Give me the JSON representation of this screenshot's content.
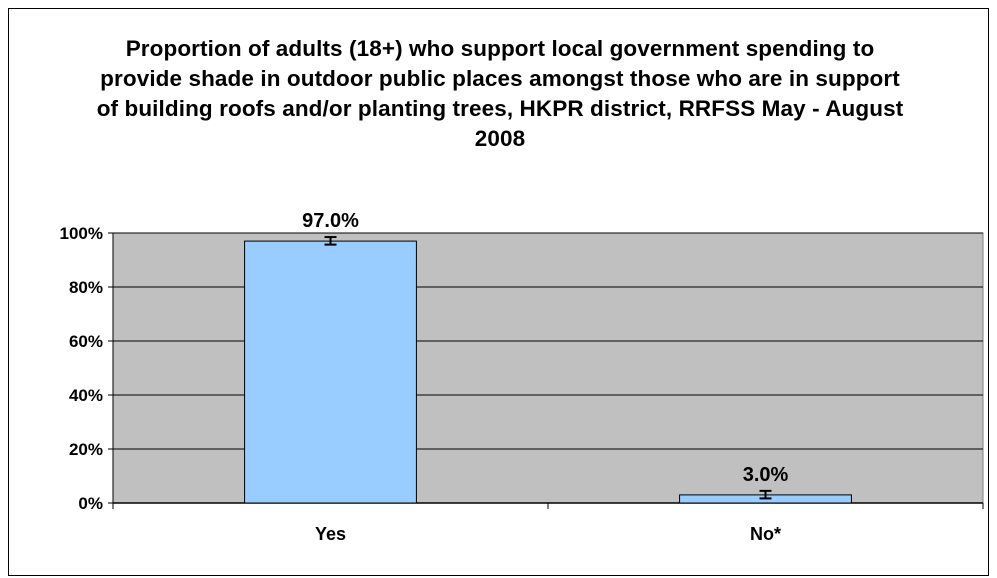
{
  "chart_data": {
    "type": "bar",
    "title": "Proportion of adults (18+) who support local government spending to provide shade in outdoor public places amongst those who are in support of building roofs and/or planting trees, HKPR district, RRFSS May - August 2008",
    "categories": [
      "Yes",
      "No*"
    ],
    "values": [
      97.0,
      3.0
    ],
    "data_labels": [
      "97.0%",
      "3.0%"
    ],
    "error_bars": [
      {
        "low": 95.7,
        "high": 98.5
      },
      {
        "low": 1.7,
        "high": 4.5
      }
    ],
    "ylim": [
      0,
      100
    ],
    "yticks": [
      0,
      20,
      40,
      60,
      80,
      100
    ],
    "ytick_labels": [
      "0%",
      "20%",
      "40%",
      "60%",
      "80%",
      "100%"
    ],
    "xlabel": "",
    "ylabel": "",
    "grid": true,
    "legend": "none",
    "colors": {
      "bar_fill": "#99CCFF",
      "plot_background": "#C0C0C0",
      "gridline": "#000000"
    }
  }
}
